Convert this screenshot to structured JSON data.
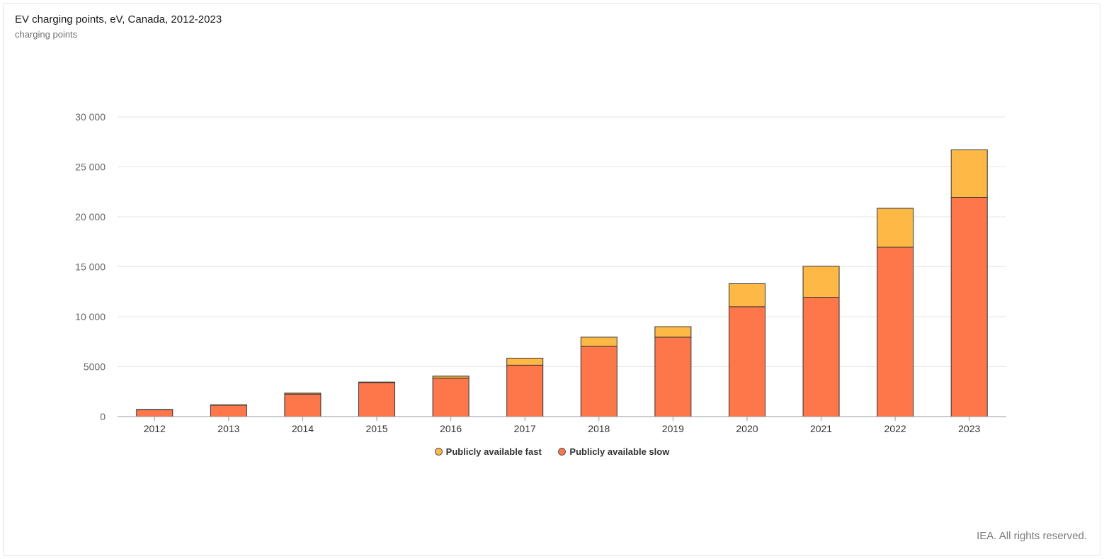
{
  "title": "EV charging points, eV, Canada, 2012-2023",
  "subtitle": "charging points",
  "credits": "IEA. All rights reserved.",
  "colors": {
    "fast": "#FDB846",
    "slow": "#FE774B",
    "grid": "#e6e6e6",
    "axis": "#999999",
    "bar_stroke": "#333333"
  },
  "chart_data": {
    "type": "bar",
    "stacked": true,
    "categories": [
      "2012",
      "2013",
      "2014",
      "2015",
      "2016",
      "2017",
      "2018",
      "2019",
      "2020",
      "2021",
      "2022",
      "2023"
    ],
    "series": [
      {
        "name": "Publicly available slow",
        "color": "#FE774B",
        "values": [
          700,
          1150,
          2250,
          3400,
          3850,
          5150,
          7050,
          7950,
          11000,
          11950,
          16950,
          21950
        ]
      },
      {
        "name": "Publicly available fast",
        "color": "#FDB846",
        "values": [
          10,
          30,
          100,
          60,
          200,
          700,
          900,
          1050,
          2300,
          3100,
          3900,
          4750
        ]
      }
    ],
    "y_ticks": [
      0,
      5000,
      10000,
      15000,
      20000,
      25000,
      30000
    ],
    "y_tick_labels": [
      "0",
      "5000",
      "10 000",
      "15 000",
      "20 000",
      "25 000",
      "30 000"
    ],
    "ylim": [
      0,
      30000
    ],
    "grid": true,
    "legend": [
      {
        "label": "Publicly available fast",
        "color": "#FDB846"
      },
      {
        "label": "Publicly available slow",
        "color": "#FE774B"
      }
    ],
    "legend_position": "bottom-center"
  }
}
